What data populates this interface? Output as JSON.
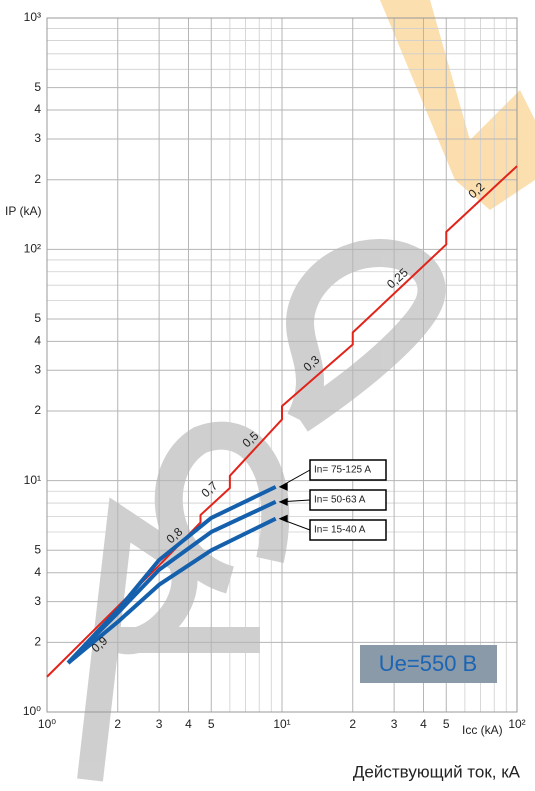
{
  "chart_data": {
    "type": "line",
    "log_x": true,
    "log_y": true,
    "grid": true,
    "y_label": "IP (kA)",
    "x_label": "Icc (kA)",
    "caption": "Действующий ток, кА",
    "badge": "Ue=550 В",
    "xlim": [
      1,
      100
    ],
    "ylim": [
      1,
      1000
    ],
    "xticks": [
      {
        "value": 1,
        "label": "10⁰"
      },
      2,
      3,
      4,
      5,
      {
        "value": 10,
        "label": "10¹"
      },
      {
        "value": 20,
        "label": "2"
      },
      {
        "value": 30,
        "label": "3"
      },
      {
        "value": 40,
        "label": "4"
      },
      {
        "value": 50,
        "label": "5"
      },
      {
        "value": 100,
        "label": "10²"
      }
    ],
    "yticks": [
      {
        "value": 1,
        "label": "10⁰"
      },
      2,
      3,
      4,
      5,
      {
        "value": 10,
        "label": "10¹"
      },
      {
        "value": 20,
        "label": "2"
      },
      {
        "value": 30,
        "label": "3"
      },
      {
        "value": 40,
        "label": "4"
      },
      {
        "value": 50,
        "label": "5"
      },
      {
        "value": 100,
        "label": "10²"
      },
      {
        "value": 200,
        "label": "2"
      },
      {
        "value": 300,
        "label": "3"
      },
      {
        "value": 400,
        "label": "4"
      },
      {
        "value": 500,
        "label": "5"
      },
      {
        "value": 1000,
        "label": "10³"
      }
    ],
    "x_minor_grid": [
      6,
      7,
      8,
      9,
      60,
      70,
      80,
      90
    ],
    "y_minor_grid": [
      6,
      7,
      8,
      9,
      60,
      70,
      80,
      90,
      600,
      700,
      800,
      900
    ],
    "limit_line": {
      "color": "#e2231a",
      "x": [
        1,
        3,
        4.5,
        4.5,
        6,
        6,
        10,
        10,
        20,
        20,
        50,
        50,
        100
      ],
      "values": [
        1.42,
        4.3,
        6.6,
        7.1,
        9.3,
        10.5,
        18.4,
        21,
        38.8,
        43.7,
        105,
        119,
        229
      ]
    },
    "ratios": [
      "0,9",
      "0,8",
      "0,7",
      "0,5",
      "0,3",
      "0,25",
      "0,2"
    ],
    "series": [
      {
        "name": "In= 75-125 A",
        "color": "#1560ad",
        "x": [
          1.23,
          2,
          3,
          5,
          9.4
        ],
        "values": [
          1.63,
          2.76,
          4.54,
          6.9,
          9.4
        ]
      },
      {
        "name": "In= 50-63 A",
        "color": "#1560ad",
        "x": [
          1.23,
          2,
          3,
          5,
          9.4
        ],
        "values": [
          1.63,
          2.68,
          4.12,
          6.0,
          8.1
        ]
      },
      {
        "name": "In= 15-40 A",
        "color": "#1560ad",
        "x": [
          1.23,
          2,
          3,
          5,
          9.4
        ],
        "values": [
          1.63,
          2.45,
          3.55,
          5.0,
          6.85
        ]
      }
    ]
  }
}
